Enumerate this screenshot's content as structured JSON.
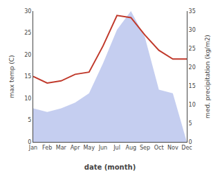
{
  "chart_data": {
    "type": "line",
    "xlabel": "date (month)",
    "ylabel": "max temp (C)",
    "y2label": "med. precipitation (kg/m2)",
    "categories": [
      "Jan",
      "Feb",
      "Mar",
      "Apr",
      "May",
      "Jun",
      "Jul",
      "Aug",
      "Sep",
      "Oct",
      "Nov",
      "Dec"
    ],
    "series": [
      {
        "type": "area",
        "axis": "y2",
        "color": "#c5cef0",
        "values": [
          9.0,
          8.0,
          9.0,
          10.5,
          13.0,
          21.0,
          30.0,
          35.0,
          28.0,
          14.0,
          13.0,
          0.0
        ]
      },
      {
        "type": "line",
        "color": "#c0392b",
        "values": [
          15.0,
          13.5,
          14.0,
          15.5,
          16.0,
          22.0,
          29.0,
          28.5,
          24.5,
          21.0,
          19.0,
          19.0
        ]
      }
    ],
    "ylim": [
      0,
      30
    ],
    "yticks": [
      0,
      5,
      10,
      15,
      20,
      25,
      30
    ],
    "y2lim": [
      0,
      35
    ],
    "y2ticks": [
      0,
      5,
      10,
      15,
      20,
      25,
      30,
      35
    ],
    "grid": false
  }
}
